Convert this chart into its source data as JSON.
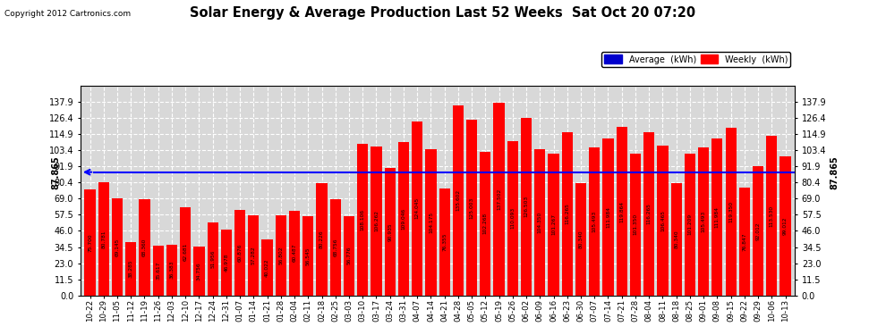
{
  "title": "Solar Energy & Average Production Last 52 Weeks  Sat Oct 20 07:20",
  "copyright": "Copyright 2012 Cartronics.com",
  "average_line": 87.865,
  "average_label": "87.865",
  "bar_color": "#ff0000",
  "average_line_color": "#0000ff",
  "background_color": "#ffffff",
  "plot_bg_color": "#d8d8d8",
  "grid_color": "#ffffff",
  "ylim": [
    0.0,
    149.5
  ],
  "yticks": [
    0.0,
    11.5,
    23.0,
    34.5,
    46.0,
    57.5,
    69.0,
    80.4,
    91.9,
    103.4,
    114.9,
    126.4,
    137.9
  ],
  "legend_avg_color": "#0000cd",
  "legend_weekly_color": "#ff0000",
  "categories": [
    "10-22",
    "10-29",
    "11-05",
    "11-12",
    "11-19",
    "11-26",
    "12-03",
    "12-10",
    "12-17",
    "12-24",
    "12-31",
    "01-07",
    "01-14",
    "01-21",
    "01-28",
    "02-04",
    "02-11",
    "02-18",
    "02-25",
    "03-03",
    "03-10",
    "03-17",
    "03-24",
    "03-31",
    "04-07",
    "04-14",
    "04-21",
    "04-28",
    "05-05",
    "05-12",
    "05-19",
    "05-26",
    "06-02",
    "06-09",
    "06-16",
    "06-23",
    "06-30",
    "07-07",
    "07-14",
    "07-21",
    "07-28",
    "08-04",
    "08-11",
    "08-18",
    "08-25",
    "09-01",
    "09-08",
    "09-15",
    "09-22",
    "09-29",
    "10-06",
    "10-13"
  ],
  "values": [
    75.7,
    80.781,
    69.145,
    38.285,
    68.36,
    35.617,
    36.383,
    62.681,
    34.756,
    51.956,
    46.978,
    60.876,
    57.282,
    40.022,
    56.802,
    60.487,
    56.545,
    80.226,
    68.756,
    56.776,
    108.106,
    106.262,
    90.935,
    109.046,
    124.045,
    104.175,
    76.355,
    135.602,
    125.003,
    102.268,
    137.502,
    110.093,
    126.503,
    104.35,
    101.267,
    116.265,
    80.34,
    105.493,
    111.984,
    119.864,
    101.35,
    116.265,
    106.465,
    80.34,
    101.209,
    105.493,
    111.984,
    119.35,
    76.847,
    92.012,
    113.53,
    99.012
  ]
}
